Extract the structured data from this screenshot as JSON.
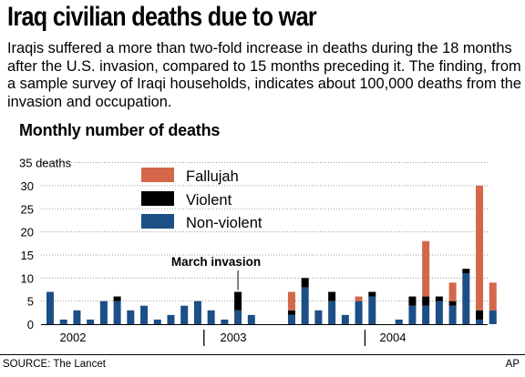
{
  "header": {
    "title": "Iraq civilian deaths due to war",
    "subtitle": "Iraqis suffered a more than two-fold increase in deaths during the 18 months after the U.S. invasion, compared to 15 months preceding it. The finding, from a sample survey of Iraqi households, indicates about 100,000 deaths from the invasion and occupation.",
    "section_title": "Monthly number of deaths"
  },
  "footer": {
    "source": "SOURCE: The Lancet",
    "credit": "AP"
  },
  "chart_data": {
    "type": "bar",
    "stacked": true,
    "y_unit_label": "35 deaths",
    "ylim": [
      0,
      35
    ],
    "yticks": [
      0,
      5,
      10,
      15,
      20,
      25,
      30,
      35
    ],
    "grid": "horizontal-dotted",
    "legend_position": "top-left",
    "year_labels": [
      "2002",
      "2003",
      "2004"
    ],
    "annotation": {
      "text": "March invasion",
      "month_index": 14
    },
    "series": [
      {
        "name": "Non-violent",
        "color": "#1b4f86",
        "values": [
          7,
          1,
          3,
          1,
          5,
          5,
          3,
          4,
          1,
          2,
          4,
          5,
          3,
          1,
          3,
          2,
          0,
          0,
          2,
          8,
          3,
          5,
          2,
          5,
          6,
          0,
          1,
          4,
          4,
          5,
          4,
          11,
          1,
          3
        ]
      },
      {
        "name": "Violent",
        "color": "#000000",
        "values": [
          0,
          0,
          0,
          0,
          0,
          1,
          0,
          0,
          0,
          0,
          0,
          0,
          0,
          0,
          4,
          0,
          0,
          0,
          1,
          2,
          0,
          2,
          0,
          0,
          1,
          0,
          0,
          2,
          2,
          1,
          1,
          1,
          2,
          0
        ]
      },
      {
        "name": "Fallujah",
        "color": "#d4674a",
        "values": [
          0,
          0,
          0,
          0,
          0,
          0,
          0,
          0,
          0,
          0,
          0,
          0,
          0,
          0,
          0,
          0,
          0,
          0,
          4,
          0,
          0,
          0,
          0,
          1,
          0,
          0,
          0,
          0,
          12,
          0,
          4,
          0,
          27,
          6
        ]
      }
    ]
  }
}
